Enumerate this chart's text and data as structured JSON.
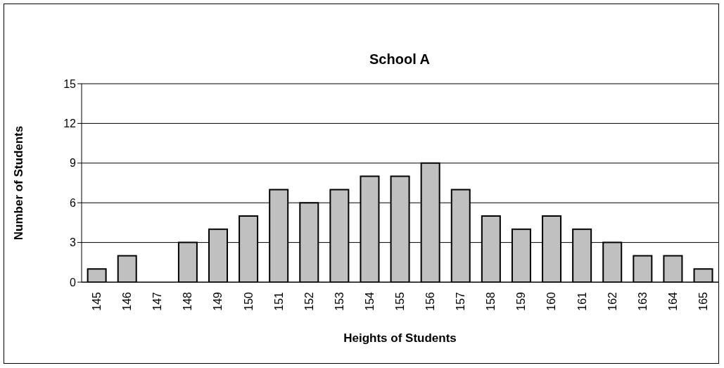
{
  "chart_data": {
    "type": "bar",
    "title": "School A",
    "xlabel": "Heights of Students",
    "ylabel": "Number of Students",
    "categories": [
      "145",
      "146",
      "147",
      "148",
      "149",
      "150",
      "151",
      "152",
      "153",
      "154",
      "155",
      "156",
      "157",
      "158",
      "159",
      "160",
      "161",
      "162",
      "163",
      "164",
      "165"
    ],
    "values": [
      1,
      2,
      0,
      3,
      4,
      5,
      7,
      6,
      7,
      8,
      8,
      9,
      7,
      5,
      4,
      5,
      4,
      3,
      2,
      2,
      1
    ],
    "color": "#c0c0c0",
    "ylim": [
      0,
      15
    ],
    "yticks": [
      0,
      3,
      6,
      9,
      12,
      15
    ],
    "grid": "y"
  }
}
